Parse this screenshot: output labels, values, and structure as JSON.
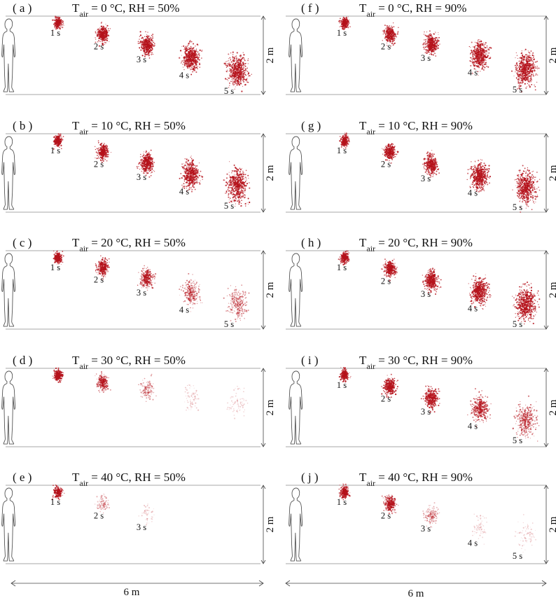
{
  "figure": {
    "height_label": "2 m",
    "width_label": "6 m",
    "dot_color": "#b5121b",
    "panels": [
      {
        "label": "( a )",
        "t_sub": "air",
        "condition": " = 0 °C, RH = 50%",
        "clouds": [
          {
            "time": "1 s",
            "density": 1.0
          },
          {
            "time": "2 s",
            "density": 1.0
          },
          {
            "time": "3 s",
            "density": 1.0
          },
          {
            "time": "4 s",
            "density": 1.0
          },
          {
            "time": "5 s",
            "density": 1.0
          }
        ]
      },
      {
        "label": "( b )",
        "t_sub": "air",
        "condition": " = 10 °C, RH = 50%",
        "clouds": [
          {
            "time": "1 s",
            "density": 1.0
          },
          {
            "time": "2 s",
            "density": 1.0
          },
          {
            "time": "3 s",
            "density": 1.0
          },
          {
            "time": "4 s",
            "density": 0.95
          },
          {
            "time": "5 s",
            "density": 0.9
          }
        ]
      },
      {
        "label": "( c )",
        "t_sub": "air",
        "condition": " = 20 °C, RH = 50%",
        "clouds": [
          {
            "time": "1 s",
            "density": 1.0
          },
          {
            "time": "2 s",
            "density": 0.85
          },
          {
            "time": "3 s",
            "density": 0.7
          },
          {
            "time": "4 s",
            "density": 0.5
          },
          {
            "time": "5 s",
            "density": 0.45
          }
        ]
      },
      {
        "label": "( d )",
        "t_sub": "air",
        "condition": " = 30 °C, RH = 50%",
        "clouds": [
          {
            "time": "",
            "density": 1.0
          },
          {
            "time": "",
            "density": 0.7
          },
          {
            "time": "",
            "density": 0.35
          },
          {
            "time": "",
            "density": 0.15
          },
          {
            "time": "",
            "density": 0.08
          }
        ]
      },
      {
        "label": "( e )",
        "t_sub": "air",
        "condition": " = 40 °C, RH = 50%",
        "clouds": [
          {
            "time": "1 s",
            "density": 0.9
          },
          {
            "time": "2 s",
            "density": 0.3
          },
          {
            "time": "3 s",
            "density": 0.06
          },
          {
            "time": "",
            "density": 0.0
          },
          {
            "time": "",
            "density": 0.0
          }
        ]
      },
      {
        "label": "( f )",
        "t_sub": "air",
        "condition": " = 0 °C, RH = 90%",
        "clouds": [
          {
            "time": "1 s",
            "density": 1.0
          },
          {
            "time": "2 s",
            "density": 1.0
          },
          {
            "time": "3 s",
            "density": 1.0
          },
          {
            "time": "4 s",
            "density": 1.0
          },
          {
            "time": "5 s",
            "density": 1.0
          }
        ]
      },
      {
        "label": "( g )",
        "t_sub": "air",
        "condition": " = 10 °C, RH = 90%",
        "clouds": [
          {
            "time": "1 s",
            "density": 1.0
          },
          {
            "time": "2 s",
            "density": 1.0
          },
          {
            "time": "3 s",
            "density": 1.0
          },
          {
            "time": "4 s",
            "density": 1.0
          },
          {
            "time": "5 s",
            "density": 1.0
          }
        ]
      },
      {
        "label": "( h )",
        "t_sub": "air",
        "condition": " = 20 °C, RH = 90%",
        "clouds": [
          {
            "time": "1 s",
            "density": 1.0
          },
          {
            "time": "2 s",
            "density": 1.0
          },
          {
            "time": "3 s",
            "density": 1.0
          },
          {
            "time": "4 s",
            "density": 1.0
          },
          {
            "time": "5 s",
            "density": 1.0
          }
        ]
      },
      {
        "label": "( i )",
        "t_sub": "air",
        "condition": " = 30 °C, RH = 90%",
        "clouds": [
          {
            "time": "1 s",
            "density": 1.0
          },
          {
            "time": "2 s",
            "density": 1.0
          },
          {
            "time": "3 s",
            "density": 0.9
          },
          {
            "time": "4 s",
            "density": 0.7
          },
          {
            "time": "5 s",
            "density": 0.6
          }
        ]
      },
      {
        "label": "( j )",
        "t_sub": "air",
        "condition": " = 40 °C, RH = 90%",
        "clouds": [
          {
            "time": "1 s",
            "density": 1.0
          },
          {
            "time": "2 s",
            "density": 0.8
          },
          {
            "time": "3 s",
            "density": 0.35
          },
          {
            "time": "4 s",
            "density": 0.1
          },
          {
            "time": "5 s",
            "density": 0.04
          }
        ]
      }
    ]
  }
}
